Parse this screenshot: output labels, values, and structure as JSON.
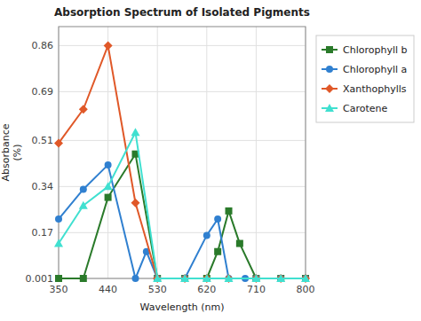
{
  "chart_data": {
    "type": "line",
    "title": "Absorption Spectrum of Isolated Pigments",
    "x_label": "Wavelength (nm)",
    "y_label": "Absorbance\n(%)",
    "xlim": [
      350,
      800
    ],
    "xticks": [
      350,
      440,
      530,
      620,
      710,
      800
    ],
    "ylim": [
      0.001,
      0.93
    ],
    "yticks": [
      0.001,
      0.17,
      0.34,
      0.51,
      0.69,
      0.86
    ],
    "grid": true,
    "legend": "right",
    "series": [
      {
        "name": "Chlorophyll b",
        "color": "#2a7a2a",
        "marker": "square",
        "x": [
          350,
          395,
          440,
          490,
          530,
          580,
          620,
          640,
          660,
          680,
          710,
          755,
          800
        ],
        "values": [
          0.001,
          0.001,
          0.3,
          0.46,
          0.001,
          0.001,
          0.001,
          0.1,
          0.25,
          0.13,
          0.001,
          0.001,
          0.001
        ]
      },
      {
        "name": "Chlorophyll a",
        "color": "#3080d0",
        "marker": "circle",
        "x": [
          350,
          395,
          440,
          490,
          510,
          530,
          580,
          620,
          640,
          660,
          690,
          710,
          755,
          800
        ],
        "values": [
          0.22,
          0.33,
          0.42,
          0.001,
          0.1,
          0.001,
          0.001,
          0.16,
          0.22,
          0.001,
          0.001,
          0.001,
          0.001,
          0.001
        ]
      },
      {
        "name": "Xanthophylls",
        "color": "#e05828",
        "marker": "diamond",
        "x": [
          350,
          395,
          440,
          490,
          530,
          580,
          620,
          660,
          710,
          755,
          800
        ],
        "values": [
          0.5,
          0.625,
          0.86,
          0.28,
          0.001,
          0.001,
          0.001,
          0.001,
          0.001,
          0.001,
          0.001
        ]
      },
      {
        "name": "Carotene",
        "color": "#40e0d0",
        "marker": "triangle",
        "x": [
          350,
          395,
          440,
          490,
          530,
          580,
          620,
          660,
          710,
          755,
          800
        ],
        "values": [
          0.13,
          0.27,
          0.34,
          0.54,
          0.001,
          0.001,
          0.001,
          0.001,
          0.001,
          0.001,
          0.001
        ]
      }
    ]
  }
}
